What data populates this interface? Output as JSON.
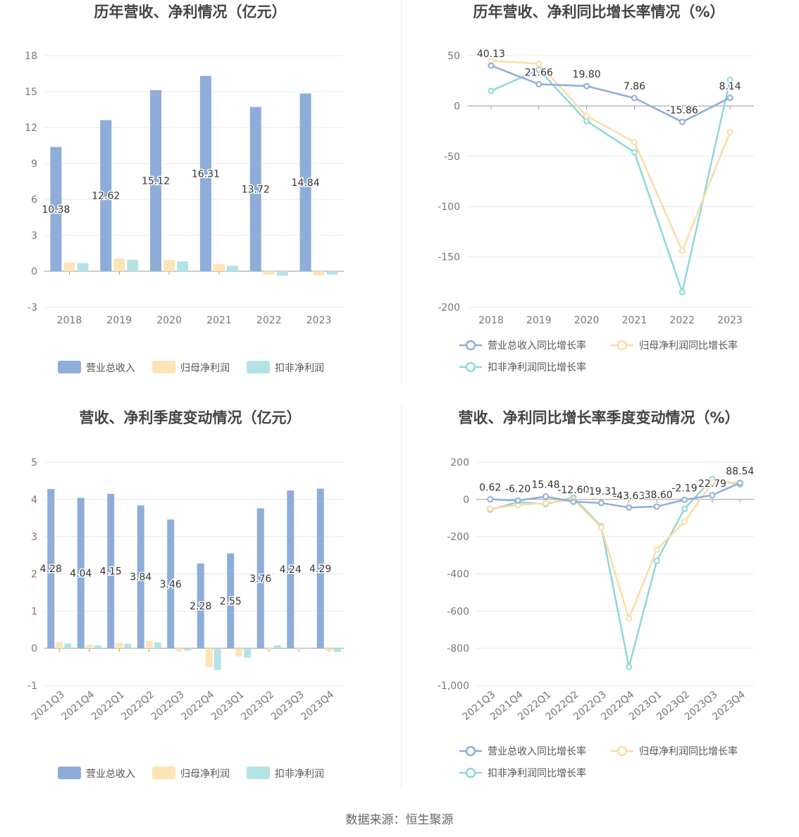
{
  "colors": {
    "revenue": "#8eadd9",
    "parent_profit": "#fde4b7",
    "deducted_profit": "#b4e3e6",
    "revenue_line": "#8eadd9",
    "parent_line": "#fbdca5",
    "deducted_line": "#8fd7da"
  },
  "source_text": "数据来源：恒生聚源",
  "chart_data": [
    {
      "id": "annual-bar",
      "type": "bar",
      "title": "历年营收、净利情况（亿元）",
      "categories": [
        "2018",
        "2019",
        "2020",
        "2021",
        "2022",
        "2023"
      ],
      "ylim": [
        -3,
        18
      ],
      "yticks": [
        -3,
        0,
        3,
        6,
        9,
        12,
        15,
        18
      ],
      "grid": true,
      "legend": "bottom",
      "series": [
        {
          "name": "营业总收入",
          "values": [
            10.38,
            12.62,
            15.12,
            16.31,
            13.72,
            14.84
          ],
          "labels": [
            "10.38",
            "12.62",
            "15.12",
            "16.31",
            "13.72",
            "14.84"
          ]
        },
        {
          "name": "归母净利润",
          "values": [
            0.74,
            1.06,
            0.95,
            0.61,
            -0.27,
            -0.34
          ]
        },
        {
          "name": "扣非净利润",
          "values": [
            0.69,
            0.96,
            0.82,
            0.45,
            -0.38,
            -0.28
          ]
        }
      ]
    },
    {
      "id": "annual-line",
      "type": "line",
      "title": "历年营收、净利同比增长率情况（%）",
      "categories": [
        "2018",
        "2019",
        "2020",
        "2021",
        "2022",
        "2023"
      ],
      "ylim": [
        -200,
        50
      ],
      "yticks": [
        -200,
        -150,
        -100,
        -50,
        0,
        50
      ],
      "grid": true,
      "legend": "bottom",
      "series": [
        {
          "name": "营业总收入同比增长率",
          "values": [
            40.13,
            21.66,
            19.8,
            7.86,
            -15.86,
            8.14
          ],
          "labels": [
            "40.13",
            "21.66",
            "19.80",
            "7.86",
            "-15.86",
            "8.14"
          ]
        },
        {
          "name": "归母净利润同比增长率",
          "values": [
            45,
            42,
            -10,
            -36,
            -144,
            -26
          ]
        },
        {
          "name": "扣非净利润同比增长率",
          "values": [
            15,
            36,
            -15,
            -46,
            -185,
            26
          ]
        }
      ]
    },
    {
      "id": "quarter-bar",
      "type": "bar",
      "title": "营收、净利季度变动情况（亿元）",
      "categories": [
        "2021Q3",
        "2021Q4",
        "2022Q1",
        "2022Q2",
        "2022Q3",
        "2022Q4",
        "2023Q1",
        "2023Q2",
        "2023Q3",
        "2023Q4"
      ],
      "ylim": [
        -1,
        5
      ],
      "yticks": [
        -1,
        0,
        1,
        2,
        3,
        4,
        5
      ],
      "grid": true,
      "legend": "bottom",
      "series": [
        {
          "name": "营业总收入",
          "values": [
            4.28,
            4.04,
            4.15,
            3.84,
            3.46,
            2.28,
            2.55,
            3.76,
            4.24,
            4.29
          ],
          "labels": [
            "4.28",
            "4.04",
            "4.15",
            "3.84",
            "3.46",
            "2.28",
            "2.55",
            "3.76",
            "4.24",
            "4.29"
          ]
        },
        {
          "name": "归母净利润",
          "values": [
            0.17,
            0.1,
            0.14,
            0.2,
            -0.08,
            -0.5,
            -0.22,
            -0.05,
            -0.03,
            -0.07
          ]
        },
        {
          "name": "扣非净利润",
          "values": [
            0.13,
            0.08,
            0.12,
            0.16,
            -0.06,
            -0.58,
            -0.25,
            0.08,
            0.02,
            -0.1
          ]
        }
      ]
    },
    {
      "id": "quarter-line",
      "type": "line",
      "title": "营收、净利同比增长率季度变动情况（%）",
      "categories": [
        "2021Q3",
        "2021Q4",
        "2022Q1",
        "2022Q2",
        "2022Q3",
        "2022Q4",
        "2023Q1",
        "2023Q2",
        "2023Q3",
        "2023Q4"
      ],
      "ylim": [
        -1000,
        200
      ],
      "yticks": [
        -1000,
        -800,
        -600,
        -400,
        -200,
        0,
        200
      ],
      "ytick_labels": [
        "-1,000",
        "-800",
        "-600",
        "-400",
        "-200",
        "0",
        "200"
      ],
      "grid": true,
      "legend": "bottom",
      "series": [
        {
          "name": "营业总收入同比增长率",
          "values": [
            0.62,
            -6.2,
            15.48,
            -12.6,
            -19.31,
            -43.63,
            -38.6,
            -2.19,
            22.79,
            88.54
          ],
          "labels": [
            "0.62",
            "-6.20",
            "15.48",
            "-12.60",
            "-19.31",
            "-43.63",
            "-38.60",
            "-2.19",
            "22.79",
            "88.54"
          ]
        },
        {
          "name": "归母净利润同比增长率",
          "values": [
            -50,
            -30,
            -20,
            0,
            -150,
            -640,
            -270,
            -120,
            90,
            90
          ]
        },
        {
          "name": "扣非净利润同比增长率",
          "values": [
            -55,
            -15,
            -25,
            10,
            -145,
            -900,
            -330,
            -50,
            110,
            80
          ]
        }
      ]
    }
  ]
}
